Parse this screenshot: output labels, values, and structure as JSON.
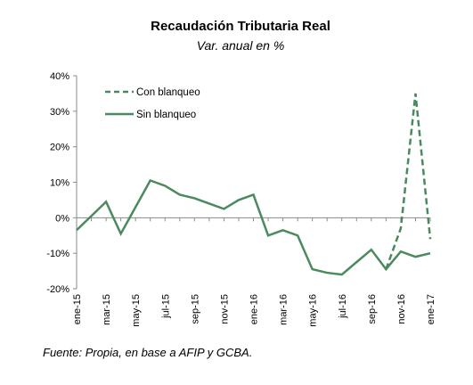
{
  "chart_data": {
    "type": "line",
    "title": "Recaudación Tributaria Real",
    "subtitle": "Var. anual en %",
    "source": "Fuente: Propia, en base a AFIP y GCBA.",
    "ylim": [
      -20,
      40
    ],
    "yticks": [
      "40%",
      "30%",
      "20%",
      "10%",
      "0%",
      "-10%",
      "-20%"
    ],
    "ytick_values": [
      40,
      30,
      20,
      10,
      0,
      -10,
      -20
    ],
    "xticks": [
      {
        "index": 0,
        "label": "ene-15"
      },
      {
        "index": 2,
        "label": "mar-15"
      },
      {
        "index": 4,
        "label": "may-15"
      },
      {
        "index": 6,
        "label": "jul-15"
      },
      {
        "index": 8,
        "label": "sep-15"
      },
      {
        "index": 10,
        "label": "nov-15"
      },
      {
        "index": 12,
        "label": "ene-16"
      },
      {
        "index": 14,
        "label": "mar-16"
      },
      {
        "index": 16,
        "label": "may-16"
      },
      {
        "index": 18,
        "label": "jul-16"
      },
      {
        "index": 20,
        "label": "sep-16"
      },
      {
        "index": 22,
        "label": "nov-16"
      },
      {
        "index": 24,
        "label": "ene-17"
      }
    ],
    "legend_position": "top-left",
    "color": "#4a8a5e",
    "series": [
      {
        "name": "Con blanqueo",
        "style": "dashed",
        "values": [
          null,
          null,
          null,
          null,
          null,
          null,
          null,
          null,
          null,
          null,
          null,
          null,
          null,
          null,
          null,
          null,
          null,
          null,
          null,
          null,
          null,
          -14.5,
          -3,
          35,
          -6
        ]
      },
      {
        "name": "Sin blanqueo",
        "style": "solid",
        "values": [
          -3.5,
          0.5,
          4.5,
          -4.5,
          3,
          10.5,
          9,
          6.5,
          5.5,
          4,
          2.5,
          5,
          6.5,
          -5,
          -3.5,
          -5,
          -14.5,
          -15.5,
          -16,
          -12.5,
          -9,
          -14.5,
          -9.5,
          -11,
          -10
        ]
      }
    ]
  }
}
